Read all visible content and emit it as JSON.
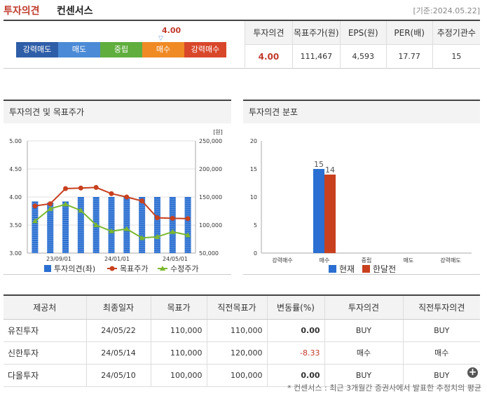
{
  "header": {
    "title_part1": "투자의견",
    "title_part2": "컨센서스",
    "date": "[기준:2024.05.22]"
  },
  "opinion_bar": {
    "value": "4.00",
    "marker": "▽",
    "segments": [
      {
        "label": "강력매도",
        "color": "#2f5ea8"
      },
      {
        "label": "매도",
        "color": "#4b8ad6"
      },
      {
        "label": "중립",
        "color": "#5fae3e"
      },
      {
        "label": "매수",
        "color": "#f08a24"
      },
      {
        "label": "강력매수",
        "color": "#d9472b"
      }
    ]
  },
  "summary": {
    "headers": [
      "투자의견",
      "목표주가(원)",
      "EPS(원)",
      "PER(배)",
      "추정기관수"
    ],
    "values": [
      "4.00",
      "111,467",
      "4,593",
      "17.77",
      "15"
    ]
  },
  "chart1": {
    "title": "투자의견 및 목표주가",
    "unit": "[원]",
    "left_ticks": [
      "5.00",
      "4.50",
      "4.00",
      "3.50",
      "3.00"
    ],
    "right_ticks": [
      "250,000",
      "200,000",
      "150,000",
      "100,000",
      "50,000"
    ],
    "x_ticks": [
      "23/09/01",
      "24/01/01",
      "24/05/01"
    ],
    "legend": [
      "투자의견(좌)",
      "목표주가",
      "수정주가"
    ]
  },
  "chart2": {
    "title": "투자의견 분포",
    "y_ticks": [
      "20",
      "15",
      "10",
      "5",
      "0"
    ],
    "categories": [
      "강력매수",
      "매수",
      "중립",
      "매도",
      "강력매도"
    ],
    "legend": [
      "현재",
      "한달전"
    ]
  },
  "chart_data": [
    {
      "type": "bar",
      "title": "투자의견 및 목표주가",
      "x": [
        "23/07",
        "23/08",
        "23/09",
        "23/10",
        "23/11",
        "23/12",
        "24/01",
        "24/02",
        "24/03",
        "24/04",
        "24/05"
      ],
      "series": [
        {
          "name": "투자의견(좌)",
          "type": "bar",
          "axis": "left",
          "color": "#2a6fd1",
          "values": [
            3.92,
            3.9,
            3.92,
            4.0,
            4.0,
            4.0,
            4.0,
            4.0,
            4.0,
            4.0,
            4.0
          ]
        },
        {
          "name": "목표주가",
          "type": "line",
          "axis": "right",
          "color": "#c8401e",
          "values": [
            134000,
            138000,
            165000,
            166000,
            167000,
            156000,
            150000,
            143000,
            113000,
            112000,
            111467
          ]
        },
        {
          "name": "수정주가",
          "type": "line",
          "axis": "right",
          "color": "#7cb82f",
          "values": [
            107000,
            129000,
            137000,
            126000,
            100000,
            89000,
            93000,
            77000,
            79000,
            88000,
            82000
          ]
        }
      ],
      "ylim_left": [
        3.0,
        5.0
      ],
      "ylim_right": [
        50000,
        250000
      ],
      "grid": true,
      "legend_position": "bottom"
    },
    {
      "type": "bar",
      "title": "투자의견 분포",
      "categories": [
        "강력매수",
        "매수",
        "중립",
        "매도",
        "강력매도"
      ],
      "series": [
        {
          "name": "현재",
          "color": "#2a6fd1",
          "values": [
            0,
            15,
            0,
            0,
            0
          ]
        },
        {
          "name": "한달전",
          "color": "#c8401e",
          "values": [
            0,
            14,
            0,
            0,
            0
          ]
        }
      ],
      "ylim": [
        0,
        20
      ],
      "grid": false,
      "legend_position": "bottom"
    }
  ],
  "broker_table": {
    "headers": [
      "제공처",
      "최종일자",
      "목표가",
      "직전목표가",
      "변동률(%)",
      "투자의견",
      "직전투자의견"
    ],
    "rows": [
      [
        "유진투자",
        "24/05/22",
        "110,000",
        "110,000",
        "0.00",
        "BUY",
        "BUY"
      ],
      [
        "신한투자",
        "24/05/14",
        "110,000",
        "120,000",
        "-8.33",
        "매수",
        "매수"
      ],
      [
        "다올투자",
        "24/05/10",
        "100,000",
        "100,000",
        "0.00",
        "BUY",
        "BUY"
      ]
    ]
  },
  "more_button": "+",
  "footnote": "* 컨센서스 : 최근 3개월간 증권사에서 발표한 추정치의 평균"
}
